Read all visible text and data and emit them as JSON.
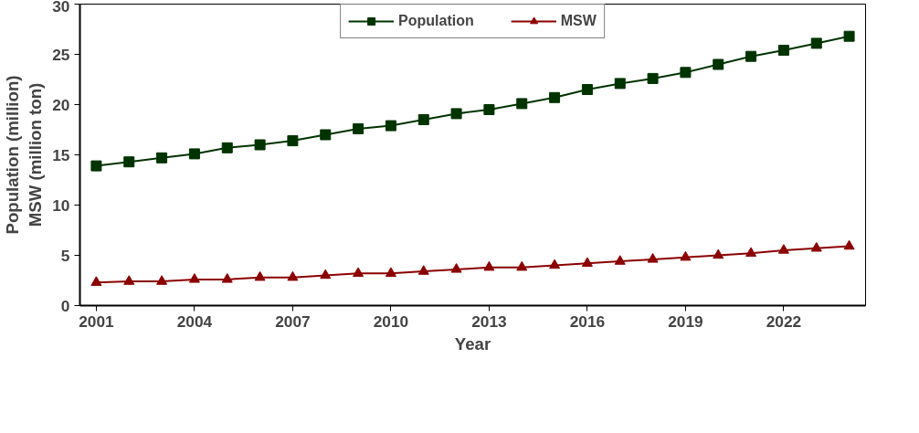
{
  "chart_data": {
    "type": "line",
    "xlabel": "Year",
    "ylabel": "Population (million)\nMSW (million ton)",
    "x": [
      2001,
      2002,
      2003,
      2004,
      2005,
      2006,
      2007,
      2008,
      2009,
      2010,
      2011,
      2012,
      2013,
      2014,
      2015,
      2016,
      2017,
      2018,
      2019,
      2020,
      2021,
      2022,
      2023,
      2024
    ],
    "series": [
      {
        "name": "Population",
        "color": "#003300",
        "marker": "square",
        "values": [
          13.9,
          14.3,
          14.7,
          15.1,
          15.7,
          16.0,
          16.4,
          17.0,
          17.6,
          17.9,
          18.5,
          19.1,
          19.5,
          20.1,
          20.7,
          21.5,
          22.1,
          22.6,
          23.2,
          24.0,
          24.8,
          25.4,
          26.1,
          26.8
        ]
      },
      {
        "name": "MSW",
        "color": "#8b0000",
        "marker": "triangle",
        "values": [
          2.3,
          2.4,
          2.4,
          2.6,
          2.6,
          2.8,
          2.8,
          3.0,
          3.2,
          3.2,
          3.4,
          3.6,
          3.8,
          3.8,
          4.0,
          4.2,
          4.4,
          4.6,
          4.8,
          5.0,
          5.2,
          5.5,
          5.7,
          5.9
        ]
      }
    ],
    "xlim": [
      2000.5,
      2024.5
    ],
    "xticks": [
      2001,
      2004,
      2007,
      2010,
      2013,
      2016,
      2019,
      2022
    ],
    "ylim": [
      0,
      30
    ],
    "yticks": [
      0,
      5,
      10,
      15,
      20,
      25,
      30
    ],
    "grid": false,
    "legend": "top",
    "line_style": "solid"
  }
}
